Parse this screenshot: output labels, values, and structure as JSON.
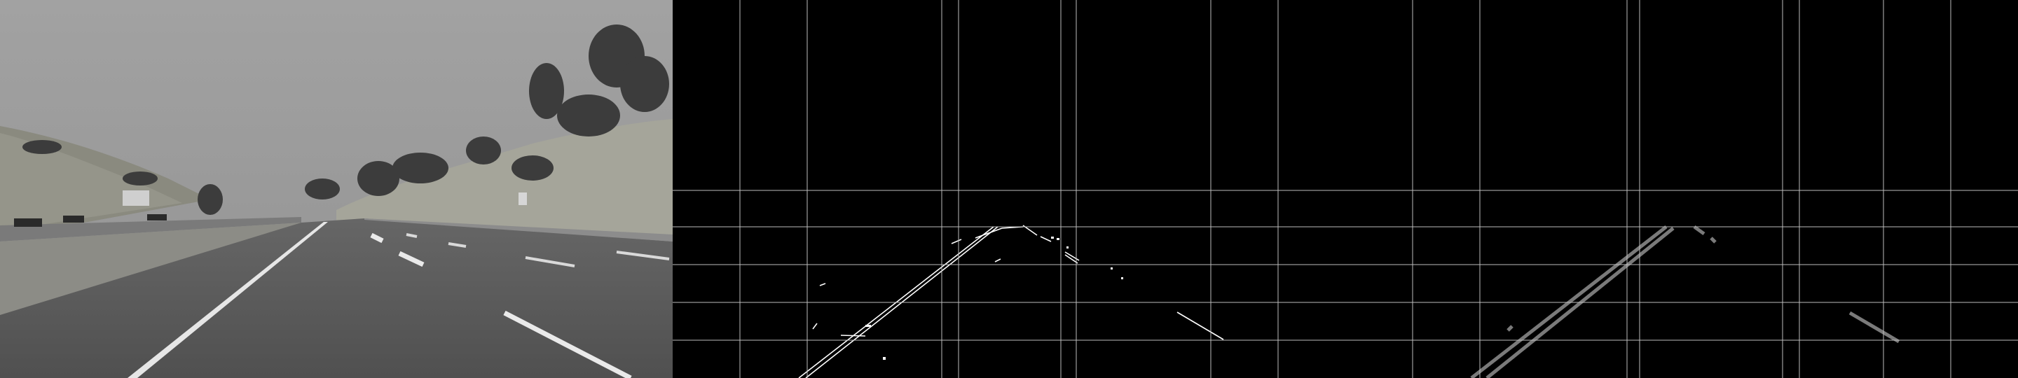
{
  "panels": [
    {
      "name": "road-photo-grayscale",
      "icon": "road-scene"
    },
    {
      "name": "edge-detection-output",
      "icon": "edge-map"
    },
    {
      "name": "hough-lines-output",
      "icon": "detected-lines"
    }
  ],
  "colors": {
    "sky": "#9b9b9b",
    "road": "#5c5c5c",
    "grid": "#bdbdbd",
    "edges": "#ffffff",
    "hough": "#7a7a7a"
  }
}
